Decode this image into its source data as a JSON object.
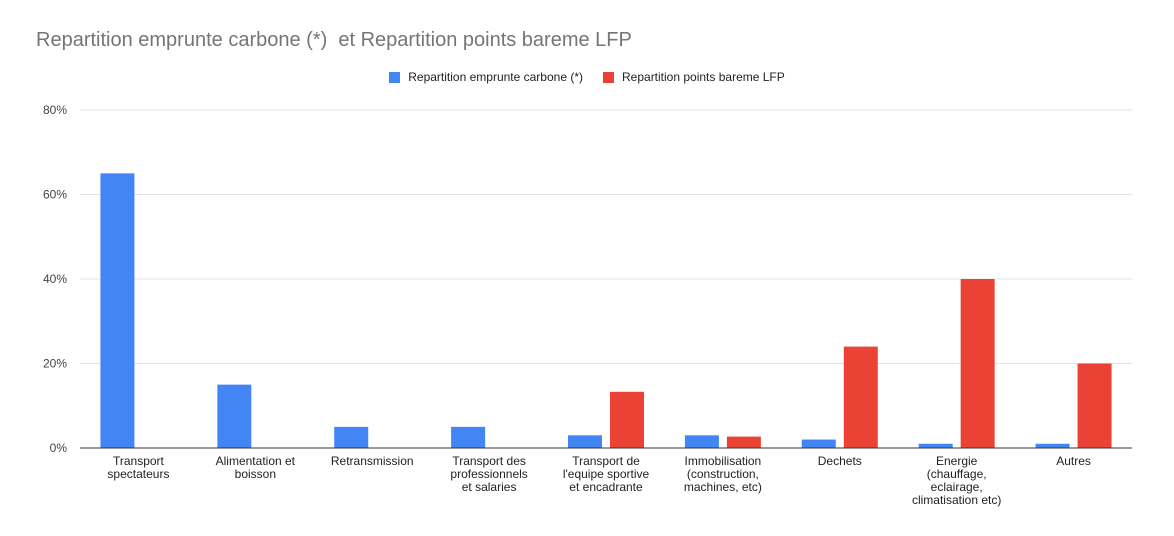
{
  "chart_data": {
    "type": "bar",
    "title": "Repartition emprunte carbone (*)  et Repartition points bareme LFP",
    "xlabel": "",
    "ylabel": "",
    "ylim": [
      0,
      80
    ],
    "y_ticks": [
      "0%",
      "20%",
      "40%",
      "60%",
      "80%"
    ],
    "y_tick_values": [
      0,
      20,
      40,
      60,
      80
    ],
    "grid": true,
    "legend_position": "top-center",
    "categories": [
      [
        "Transport",
        "spectateurs"
      ],
      [
        "Alimentation et",
        "boisson"
      ],
      [
        "Retransmission"
      ],
      [
        "Transport des",
        "professionnels",
        "et salaries"
      ],
      [
        "Transport de",
        "l'equipe sportive",
        "et encadrante"
      ],
      [
        "Immobilisation",
        "(construction,",
        "machines, etc)"
      ],
      [
        "Dechets"
      ],
      [
        "Energie",
        "(chauffage,",
        "eclairage,",
        "climatisation etc)"
      ],
      [
        "Autres"
      ]
    ],
    "series": [
      {
        "name": "Repartition emprunte carbone (*)",
        "color": "#4285f4",
        "values": [
          65,
          15,
          5,
          5,
          3,
          3,
          2,
          1,
          1
        ]
      },
      {
        "name": "Repartition points bareme LFP",
        "color": "#ea4335",
        "values": [
          0,
          0,
          0,
          0,
          13.3,
          2.7,
          24,
          40,
          20
        ]
      }
    ]
  }
}
